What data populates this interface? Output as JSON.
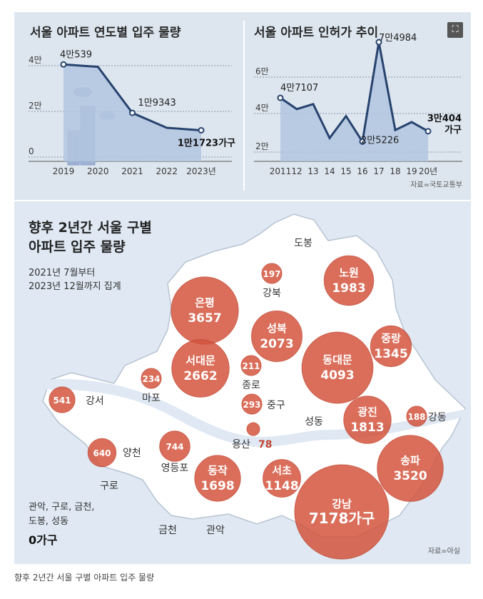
{
  "chart_data": [
    {
      "type": "area",
      "title": "서울 아파트 연도별 입주 물량",
      "x": [
        "2019",
        "2020",
        "2021",
        "2022",
        "2023년"
      ],
      "values": [
        40539,
        39500,
        19343,
        12800,
        11723
      ],
      "y_ticks": [
        "4만",
        "2만",
        "0"
      ],
      "ylim": [
        0,
        40000
      ],
      "point_labels": [
        "4만539",
        "",
        "1만9343",
        "",
        "1만1723가구"
      ],
      "grid": true
    },
    {
      "type": "area",
      "title": "서울 아파트 인허가 추이",
      "x": [
        "2011",
        "12",
        "13",
        "14",
        "15",
        "16",
        "17",
        "18",
        "19",
        "20년"
      ],
      "values": [
        47107,
        41500,
        44000,
        27000,
        38000,
        25226,
        74984,
        31000,
        35000,
        30404
      ],
      "y_ticks": [
        "6만",
        "4만",
        "2만"
      ],
      "ylim": [
        20000,
        60000
      ],
      "point_labels": [
        "4만7107",
        "",
        "",
        "",
        "",
        "2만5226",
        "7만4984",
        "",
        "",
        "3만404\n가구"
      ],
      "grid": true,
      "source": "자료=국토교통부"
    },
    {
      "type": "bubble-map",
      "title_lines": [
        "향후 2년간 서울 구별",
        "아파트 입주 물량"
      ],
      "subtitle_lines": [
        "2021년 7월부터",
        "2023년 12월까지 집계"
      ],
      "districts": [
        {
          "name": "은평",
          "value": 3657,
          "label": "3657"
        },
        {
          "name": "서대문",
          "value": 2662,
          "label": "2662"
        },
        {
          "name": "성북",
          "value": 2073,
          "label": "2073"
        },
        {
          "name": "노원",
          "value": 1983,
          "label": "1983"
        },
        {
          "name": "중랑",
          "value": 1345,
          "label": "1345"
        },
        {
          "name": "동대문",
          "value": 4093,
          "label": "4093"
        },
        {
          "name": "광진",
          "value": 1813,
          "label": "1813"
        },
        {
          "name": "송파",
          "value": 3520,
          "label": "3520"
        },
        {
          "name": "강남",
          "value": 7178,
          "label": "7178가구"
        },
        {
          "name": "서초",
          "value": 1148,
          "label": "1148"
        },
        {
          "name": "동작",
          "value": 1698,
          "label": "1698"
        },
        {
          "name": "영등포",
          "value": 744,
          "label": "744"
        },
        {
          "name": "양천",
          "value": 640,
          "label": "640"
        },
        {
          "name": "강서",
          "value": 541,
          "label": "541"
        },
        {
          "name": "마포",
          "value": 234,
          "label": "234"
        },
        {
          "name": "종로",
          "value": 211,
          "label": "211"
        },
        {
          "name": "중구",
          "value": 293,
          "label": "293"
        },
        {
          "name": "강북",
          "value": 197,
          "label": "197"
        },
        {
          "name": "강동",
          "value": 188,
          "label": "188"
        },
        {
          "name": "용산",
          "value": 78,
          "label": "78"
        }
      ],
      "other_labels": [
        "도봉",
        "성동",
        "구로",
        "금천",
        "관악"
      ],
      "zero_note_lines": [
        "관악, 구로, 금천,",
        "도봉, 성동"
      ],
      "zero_value": "0가구",
      "source": "자료=아실",
      "colors": {
        "bubble": "#d4553e",
        "map_fill": "#ffffff",
        "map_stroke": "#b8c4d2"
      }
    }
  ],
  "caption": "향후 2년간 서울 구별 아파트 입주 물량",
  "colors": {
    "area_fill": "#b3c6e0",
    "line": "#27436e",
    "panel_bg": "#dde6ef"
  }
}
